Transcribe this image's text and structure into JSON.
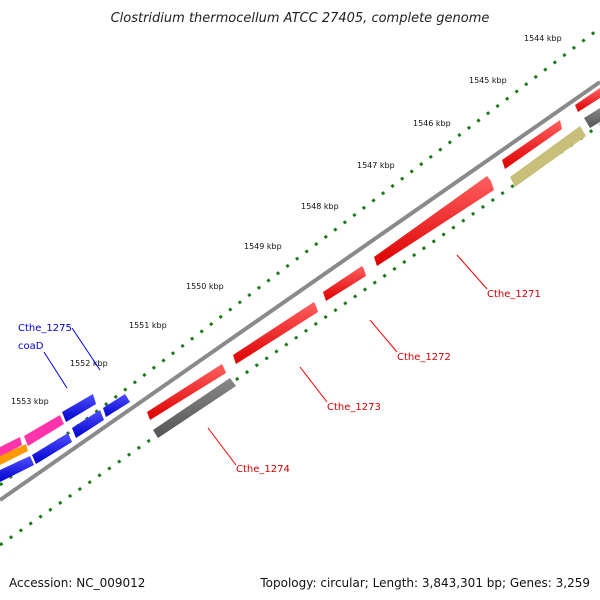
{
  "title": "Clostridium thermocellum ATCC 27405, complete genome",
  "ticks": [
    "1544 kbp",
    "1545 kbp",
    "1546 kbp",
    "1547 kbp",
    "1548 kbp",
    "1549 kbp",
    "1550 kbp",
    "1551 kbp",
    "1552 kbp",
    "1553 kbp"
  ],
  "genes": [
    {
      "label": "Cthe_1271",
      "color": "#ff0000"
    },
    {
      "label": "Cthe_1272",
      "color": "#ff0000"
    },
    {
      "label": "Cthe_1273",
      "color": "#ff0000"
    },
    {
      "label": "Cthe_1274",
      "color": "#ff0000"
    },
    {
      "label": "Cthe_1275",
      "color": "#0000ff"
    },
    {
      "label": "coaD",
      "color": "#0000ff"
    }
  ],
  "colors": {
    "backbone": "#8a8a8a",
    "dots": "#1a7a1a",
    "red_feature": "#ff0000",
    "blue_feature": "#0000ff",
    "gray_feature": "#666666",
    "olive_feature": "#c8c07a",
    "magenta_feature": "#ff33aa",
    "orange_feature": "#ff9900"
  },
  "footer": {
    "accession": "Accession: NC_009012",
    "summary": "Topology: circular; Length: 3,843,301 bp; Genes: 3,259"
  }
}
